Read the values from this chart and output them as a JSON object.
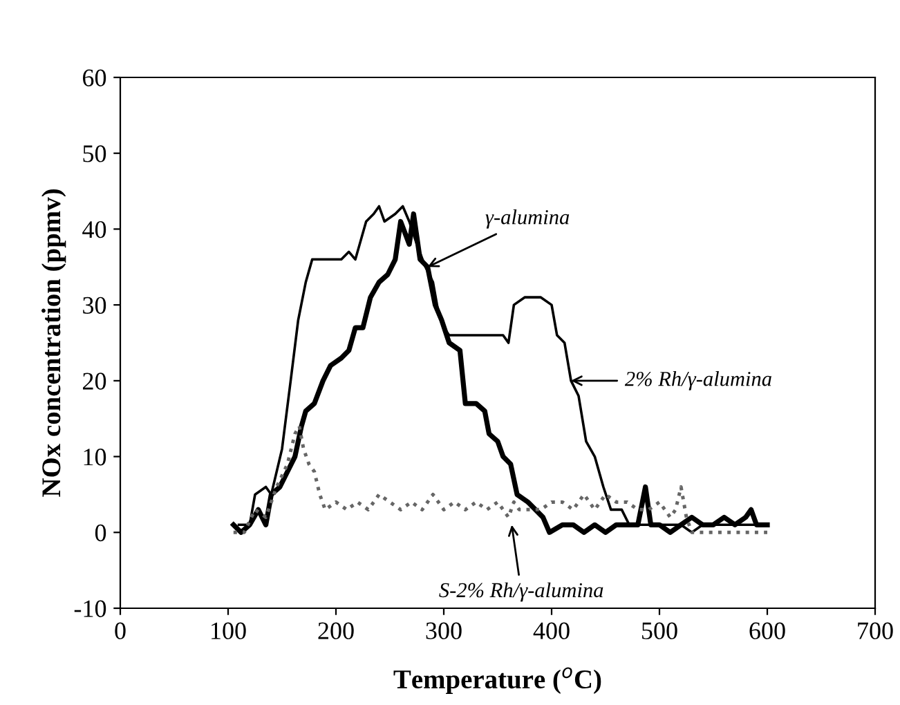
{
  "chart_data": {
    "type": "line",
    "xlabel": "Temperature ($^{o}$C)",
    "ylabel": "NOx concentration (ppmv)",
    "xlim": [
      0,
      700
    ],
    "xticks": [
      0,
      100,
      200,
      300,
      400,
      500,
      600,
      700
    ],
    "ylim": [
      -10,
      60
    ],
    "yticks": [
      -10,
      0,
      10,
      20,
      30,
      40,
      50,
      60
    ],
    "grid": false,
    "legend": false,
    "marker": "none",
    "series": [
      {
        "color": "#000000",
        "line_style": "solid",
        "x": [
          110,
          120,
          125,
          135,
          140,
          150,
          158,
          165,
          172,
          178,
          185,
          195,
          205,
          212,
          218,
          222,
          228,
          235,
          240,
          245,
          255,
          262,
          268,
          275,
          283,
          290,
          295,
          300,
          305,
          320,
          340,
          355,
          360,
          365,
          375,
          390,
          400,
          405,
          412,
          418,
          425,
          432,
          440,
          448,
          455,
          465,
          472,
          480,
          490,
          500,
          510,
          520,
          530,
          540,
          560,
          580,
          590,
          600
        ],
        "values": [
          1,
          1,
          5,
          6,
          5,
          11,
          20,
          28,
          33,
          36,
          36,
          36,
          36,
          37,
          36,
          38,
          41,
          42,
          43,
          41,
          42,
          43,
          41,
          38,
          35,
          33,
          29,
          27,
          26,
          26,
          26,
          26,
          25,
          30,
          31,
          31,
          30,
          26,
          25,
          20,
          18,
          12,
          10,
          6,
          3,
          3,
          1,
          1,
          1,
          1,
          1,
          1,
          0,
          1,
          1,
          1,
          1,
          1
        ]
      },
      {
        "color": "#000000",
        "line_style": "solid",
        "x": [
          105,
          112,
          120,
          128,
          135,
          140,
          148,
          155,
          162,
          168,
          172,
          180,
          188,
          195,
          205,
          212,
          218,
          225,
          232,
          240,
          248,
          255,
          260,
          268,
          272,
          278,
          285,
          292,
          298,
          305,
          315,
          320,
          330,
          338,
          342,
          350,
          355,
          362,
          368,
          378,
          385,
          392,
          398,
          410,
          420,
          430,
          440,
          450,
          460,
          470,
          480,
          487,
          492,
          500,
          510,
          520,
          530,
          540,
          550,
          560,
          570,
          580,
          585,
          590,
          600
        ],
        "values": [
          1,
          0,
          1,
          3,
          1,
          5,
          6,
          8,
          10,
          14,
          16,
          17,
          20,
          22,
          23,
          24,
          27,
          27,
          31,
          33,
          34,
          36,
          41,
          38,
          42,
          36,
          35,
          30,
          28,
          25,
          24,
          17,
          17,
          16,
          13,
          12,
          10,
          9,
          5,
          4,
          3,
          2,
          0,
          1,
          1,
          0,
          1,
          0,
          1,
          1,
          1,
          6,
          1,
          1,
          0,
          1,
          2,
          1,
          1,
          2,
          1,
          2,
          3,
          1,
          1
        ]
      },
      {
        "color": "#666666",
        "line_style": "dotted",
        "x": [
          105,
          115,
          125,
          135,
          145,
          155,
          162,
          166,
          170,
          175,
          180,
          185,
          190,
          200,
          210,
          220,
          230,
          240,
          250,
          260,
          270,
          280,
          290,
          300,
          310,
          320,
          330,
          340,
          350,
          360,
          365,
          370,
          380,
          390,
          400,
          410,
          420,
          430,
          440,
          450,
          460,
          470,
          480,
          490,
          500,
          510,
          515,
          520,
          525,
          530,
          540,
          560,
          580,
          600
        ],
        "values": [
          0,
          0,
          3,
          2,
          6,
          9,
          13,
          14,
          11,
          9,
          8,
          5,
          3,
          4,
          3,
          4,
          3,
          5,
          4,
          3,
          4,
          3,
          5,
          3,
          4,
          3,
          4,
          3,
          4,
          2,
          4,
          3,
          3,
          3,
          4,
          4,
          3,
          5,
          3,
          5,
          4,
          4,
          3,
          3,
          4,
          2,
          3,
          6,
          2,
          0,
          0,
          0,
          0,
          0
        ]
      }
    ],
    "annotations": [
      {
        "text": "γ-alumina",
        "x": 285,
        "y": 35
      },
      {
        "text": "2% Rh/γ-alumina",
        "x": 418,
        "y": 20
      },
      {
        "text": "S-2% Rh/γ-alumina",
        "x": 363,
        "y": 1
      }
    ]
  }
}
